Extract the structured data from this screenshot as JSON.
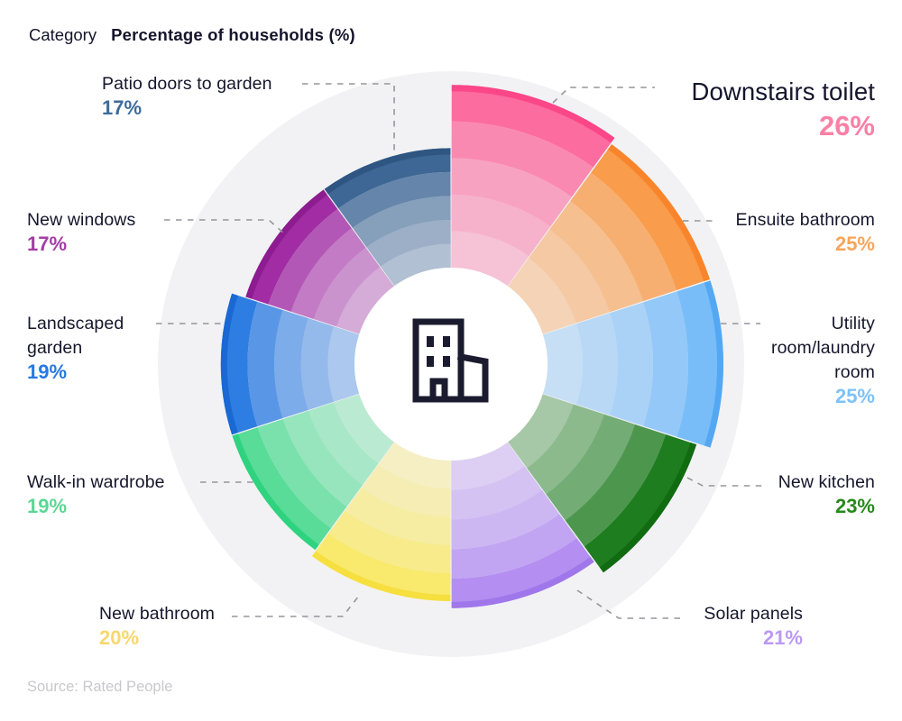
{
  "header": {
    "category_label": "Category",
    "metric_label": "Percentage of households (%)"
  },
  "source_note": "Source: Rated People",
  "center_icon": "building-icon",
  "chart_data": {
    "type": "radial-bar",
    "title": "Percentage of households (%)",
    "unit": "%",
    "start_angle_deg": 0,
    "direction": "clockwise",
    "center_hole": true,
    "legend": "none",
    "background_ring_color": "#F2F2F4",
    "categories": [
      "Downstairs toilet",
      "Ensuite bathroom",
      "Utility room/laundry room",
      "New kitchen",
      "Solar panels",
      "New bathroom",
      "Walk-in wardrobe",
      "Landscaped garden",
      "New windows",
      "Patio doors to garden"
    ],
    "values": [
      26,
      25,
      25,
      23,
      21,
      20,
      19,
      19,
      17,
      17
    ],
    "pct_labels": [
      "26%",
      "25%",
      "25%",
      "23%",
      "21%",
      "20%",
      "19%",
      "19%",
      "17%",
      "17%"
    ],
    "colors": [
      "#FC6C9F",
      "#F99C4B",
      "#79BDF8",
      "#1E7D1E",
      "#B48FF1",
      "#F9E96D",
      "#58DC97",
      "#2E7DE2",
      "#A12CA4",
      "#3E6795"
    ],
    "rim_colors": [
      "#FB4688",
      "#F8852B",
      "#54A8F3",
      "#116B11",
      "#A077EB",
      "#F6DF3E",
      "#2FD37F",
      "#1A68D4",
      "#8C1C90",
      "#2F5682"
    ],
    "pct_colors": [
      "#FA80A7",
      "#F9A55B",
      "#7CC3F9",
      "#278A1A",
      "#BC98F3",
      "#F8D76E",
      "#5AD794",
      "#2679E2",
      "#A43BA7",
      "#3D6B9C"
    ]
  }
}
